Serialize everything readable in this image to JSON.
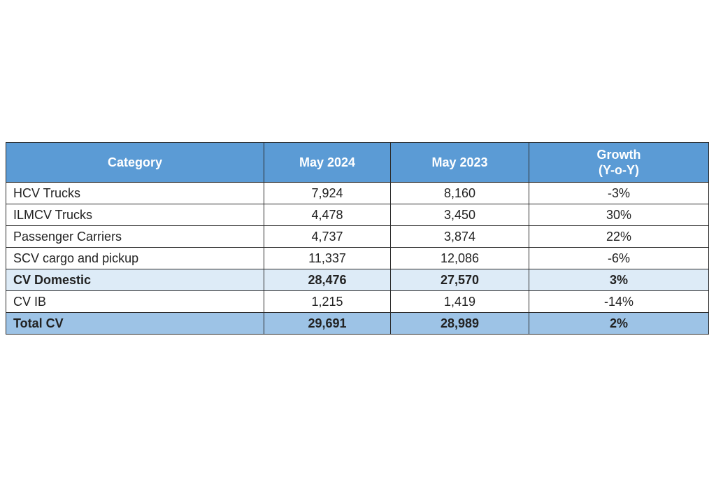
{
  "table": {
    "headers": {
      "category": "Category",
      "may2024": "May 2024",
      "may2023": "May 2023",
      "growth_line1": "Growth",
      "growth_line2": "(Y-o-Y)"
    },
    "rows": [
      {
        "category": "HCV Trucks",
        "may2024": "7,924",
        "may2023": "8,160",
        "growth": "-3%"
      },
      {
        "category": "ILMCV Trucks",
        "may2024": "4,478",
        "may2023": "3,450",
        "growth": "30%"
      },
      {
        "category": "Passenger Carriers",
        "may2024": "4,737",
        "may2023": "3,874",
        "growth": "22%"
      },
      {
        "category": "SCV cargo and pickup",
        "may2024": "11,337",
        "may2023": "12,086",
        "growth": "-6%"
      },
      {
        "category": "CV Domestic",
        "may2024": "28,476",
        "may2023": "27,570",
        "growth": "3%"
      },
      {
        "category": "CV IB",
        "may2024": "1,215",
        "may2023": "1,419",
        "growth": "-14%"
      },
      {
        "category": "Total CV",
        "may2024": "29,691",
        "may2023": "28,989",
        "growth": "2%"
      }
    ]
  },
  "colors": {
    "header_bg": "#5b9bd5",
    "subtotal_bg": "#ddebf7",
    "total_bg": "#9dc3e6"
  }
}
